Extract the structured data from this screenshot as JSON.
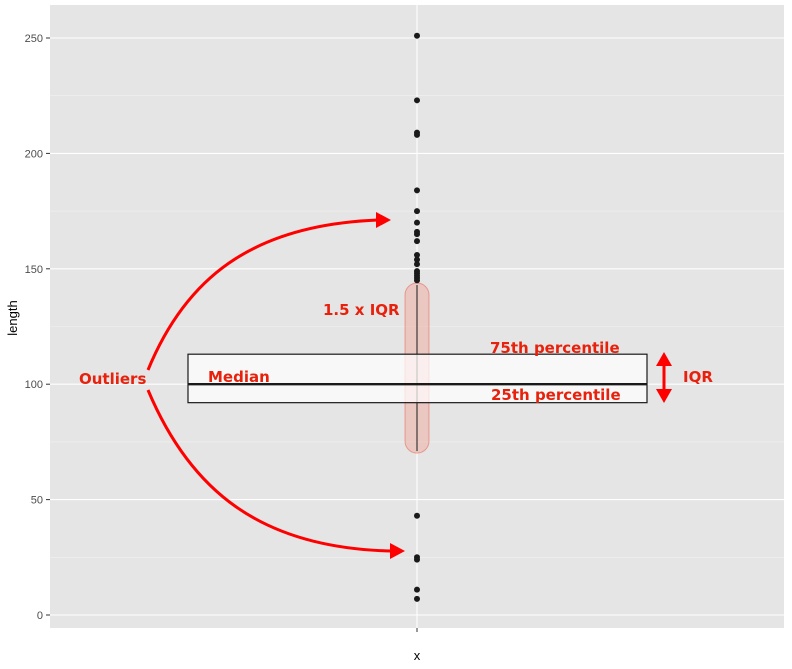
{
  "chart_data": {
    "type": "boxplot",
    "xlabel": "x",
    "ylabel": "length",
    "x_categories": [
      "x"
    ],
    "ylim": [
      -3,
      256
    ],
    "y_ticks": [
      0,
      50,
      100,
      150,
      200,
      250
    ],
    "y_tick_labels": [
      "0",
      "50",
      "100",
      "150",
      "200",
      "250"
    ],
    "grid": true,
    "box": {
      "q1": 92,
      "median": 100,
      "q3": 113,
      "whisker_low": 71,
      "whisker_high": 143
    },
    "outliers": [
      251,
      223,
      209,
      208,
      184,
      175,
      170,
      166,
      165,
      162,
      156,
      154,
      152,
      149,
      148,
      147,
      146,
      145,
      43,
      25,
      24,
      11,
      7
    ],
    "annotations": {
      "outliers": "Outliers",
      "median": "Median",
      "p75": "75th percentile",
      "p25": "25th percentile",
      "iqr": "IQR",
      "whisker": "1.5 x IQR"
    },
    "colors": {
      "panel": "#e5e5e5",
      "grid": "#ffffff",
      "annotation": "#e8210c",
      "points": "#1a1a1a"
    }
  }
}
